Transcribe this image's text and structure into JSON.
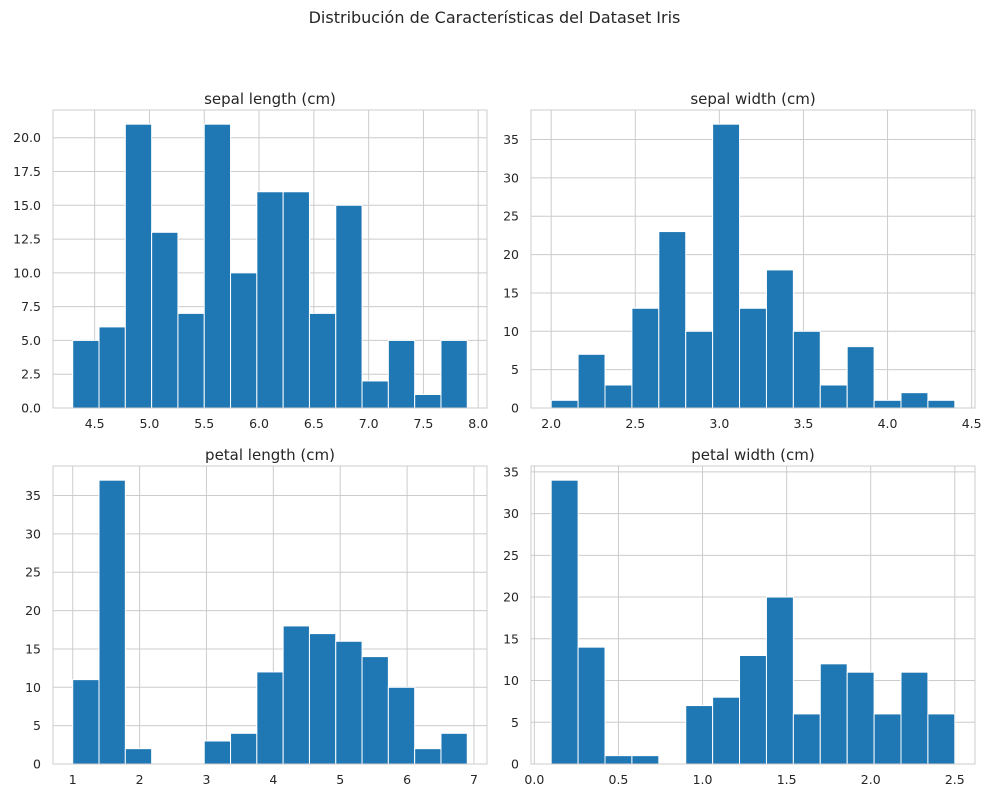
{
  "suptitle": "Distribución de Características del Dataset Iris",
  "colors": {
    "bar": "#1f77b4",
    "grid": "#cccccc",
    "text": "#262626",
    "bar_edge": "#ffffff"
  },
  "chart_data": [
    {
      "type": "bar",
      "title": "sepal length (cm)",
      "xlabel": "",
      "ylabel": "",
      "bin_edges": [
        4.3,
        4.54,
        4.78,
        5.02,
        5.26,
        5.5,
        5.74,
        5.98,
        6.22,
        6.46,
        6.7,
        6.94,
        7.18,
        7.42,
        7.66,
        7.9
      ],
      "values": [
        5,
        6,
        21,
        13,
        7,
        21,
        10,
        16,
        16,
        7,
        15,
        2,
        5,
        1,
        5
      ],
      "xlim": [
        4.12,
        8.08
      ],
      "ylim": [
        0,
        22.05
      ],
      "xticks": [
        4.5,
        5.0,
        5.5,
        6.0,
        6.5,
        7.0,
        7.5,
        8.0
      ],
      "xtick_labels": [
        "4.5",
        "5.0",
        "5.5",
        "6.0",
        "6.5",
        "7.0",
        "7.5",
        "8.0"
      ],
      "yticks": [
        0,
        2.5,
        5,
        7.5,
        10,
        12.5,
        15,
        17.5,
        20
      ],
      "ytick_labels": [
        "0.0",
        "2.5",
        "5.0",
        "7.5",
        "10.0",
        "12.5",
        "15.0",
        "17.5",
        "20.0"
      ],
      "grid": true
    },
    {
      "type": "bar",
      "title": "sepal width (cm)",
      "xlabel": "",
      "ylabel": "",
      "bin_edges": [
        2.0,
        2.16,
        2.32,
        2.48,
        2.64,
        2.8,
        2.96,
        3.12,
        3.28,
        3.44,
        3.6,
        3.76,
        3.92,
        4.08,
        4.24,
        4.4
      ],
      "values": [
        1,
        7,
        3,
        13,
        23,
        10,
        37,
        13,
        18,
        10,
        3,
        8,
        1,
        2,
        1
      ],
      "xlim": [
        1.88,
        4.52
      ],
      "ylim": [
        0,
        38.85
      ],
      "xticks": [
        2.0,
        2.5,
        3.0,
        3.5,
        4.0,
        4.5
      ],
      "xtick_labels": [
        "2.0",
        "2.5",
        "3.0",
        "3.5",
        "4.0",
        "4.5"
      ],
      "yticks": [
        0,
        5,
        10,
        15,
        20,
        25,
        30,
        35
      ],
      "ytick_labels": [
        "0",
        "5",
        "10",
        "15",
        "20",
        "25",
        "30",
        "35"
      ],
      "grid": true
    },
    {
      "type": "bar",
      "title": "petal length (cm)",
      "xlabel": "",
      "ylabel": "",
      "bin_edges": [
        1.0,
        1.3933,
        1.7867,
        2.18,
        2.5733,
        2.9667,
        3.36,
        3.7533,
        4.1467,
        4.54,
        4.9333,
        5.3267,
        5.72,
        6.1133,
        6.5067,
        6.9
      ],
      "values": [
        11,
        37,
        2,
        0,
        0,
        3,
        4,
        12,
        18,
        17,
        16,
        14,
        10,
        2,
        4
      ],
      "xlim": [
        0.705,
        7.195
      ],
      "ylim": [
        0,
        38.85
      ],
      "xticks": [
        1,
        2,
        3,
        4,
        5,
        6,
        7
      ],
      "xtick_labels": [
        "1",
        "2",
        "3",
        "4",
        "5",
        "6",
        "7"
      ],
      "yticks": [
        0,
        5,
        10,
        15,
        20,
        25,
        30,
        35
      ],
      "ytick_labels": [
        "0",
        "5",
        "10",
        "15",
        "20",
        "25",
        "30",
        "35"
      ],
      "grid": true
    },
    {
      "type": "bar",
      "title": "petal width (cm)",
      "xlabel": "",
      "ylabel": "",
      "bin_edges": [
        0.1,
        0.26,
        0.42,
        0.58,
        0.74,
        0.9,
        1.06,
        1.22,
        1.38,
        1.54,
        1.7,
        1.86,
        2.02,
        2.18,
        2.34,
        2.5
      ],
      "values": [
        34,
        14,
        1,
        1,
        0,
        7,
        8,
        13,
        20,
        6,
        12,
        11,
        6,
        11,
        6
      ],
      "xlim": [
        -0.02,
        2.62
      ],
      "ylim": [
        0,
        35.7
      ],
      "xticks": [
        0.0,
        0.5,
        1.0,
        1.5,
        2.0,
        2.5
      ],
      "xtick_labels": [
        "0.0",
        "0.5",
        "1.0",
        "1.5",
        "2.0",
        "2.5"
      ],
      "yticks": [
        0,
        5,
        10,
        15,
        20,
        25,
        30,
        35
      ],
      "ytick_labels": [
        "0",
        "5",
        "10",
        "15",
        "20",
        "25",
        "30",
        "35"
      ],
      "grid": true
    }
  ]
}
